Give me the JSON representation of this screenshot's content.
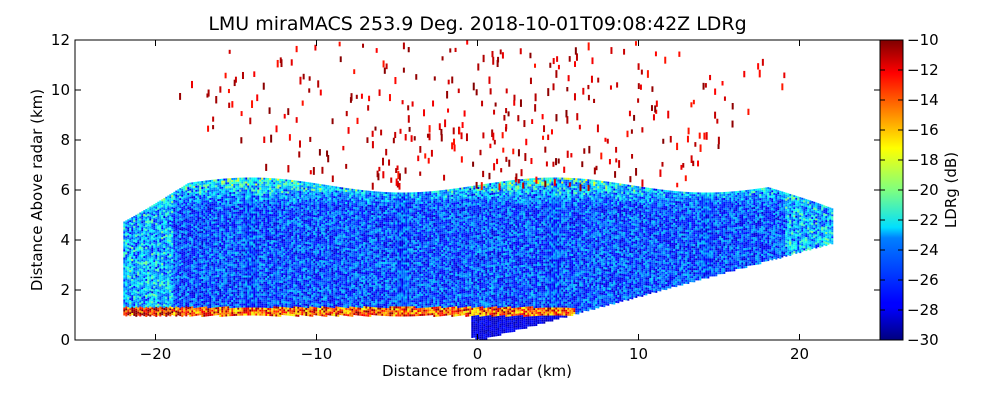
{
  "chart_data": {
    "type": "heatmap",
    "title": "LMU miraMACS 253.9 Deg. 2018-10-01T09:08:42Z  LDRg",
    "xlabel": "Distance from radar (km)",
    "ylabel": "Distance Above radar  (km)",
    "xlim": [
      -25,
      25
    ],
    "ylim": [
      0,
      12
    ],
    "xticks": [
      -20,
      -10,
      0,
      10,
      20
    ],
    "yticks": [
      0,
      2,
      4,
      6,
      8,
      10,
      12
    ],
    "colorbar": {
      "label": "LDRg (dB)",
      "range": [
        -30,
        -10
      ],
      "ticks": [
        -10,
        -12,
        -14,
        -16,
        -18,
        -20,
        -22,
        -24,
        -26,
        -28,
        -30
      ],
      "colormap": "jet"
    },
    "scan": {
      "elevation_deg": 253.9,
      "max_range_km": 22,
      "cloud_base_km": 1.0,
      "cloud_top_km": 6.2,
      "noise_ldr_db": -10
    }
  }
}
